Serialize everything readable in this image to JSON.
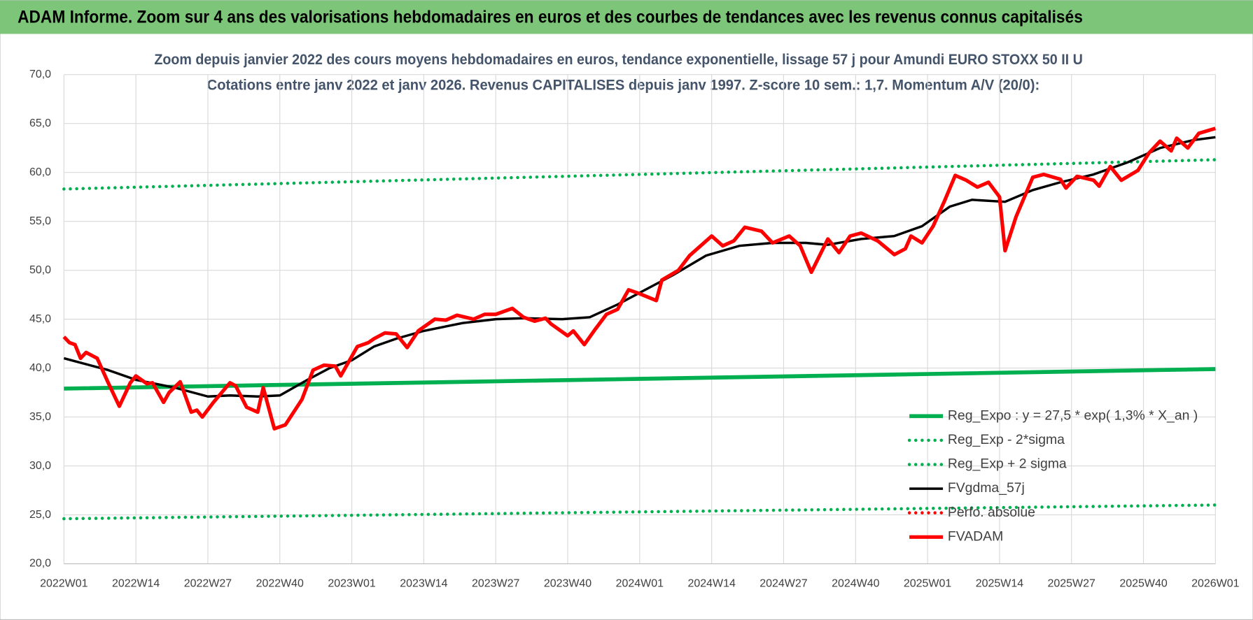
{
  "header": {
    "title": "ADAM Informe. Zoom sur 4 ans des valorisations hebdomadaires en euros et des courbes de tendances avec les revenus connus capitalisés"
  },
  "chart_data": {
    "type": "line",
    "title": "Zoom depuis janvier 2022 des cours moyens hebdomadaires en euros, tendance exponentielle, lissage 57 j pour Amundi EURO STOXX 50 II U",
    "subtitle": "Cotations entre janv 2022 et janv 2026. Revenus CAPITALISES depuis janv 1997. Z-score 10 sem.: 1,7. Momentum A/V (20/0):",
    "xlim": [
      0,
      208
    ],
    "xticks": [
      {
        "value": 0,
        "label": "2022W01"
      },
      {
        "value": 13,
        "label": "2022W14"
      },
      {
        "value": 26,
        "label": "2022W27"
      },
      {
        "value": 39,
        "label": "2022W40"
      },
      {
        "value": 52,
        "label": "2023W01"
      },
      {
        "value": 65,
        "label": "2023W14"
      },
      {
        "value": 78,
        "label": "2023W27"
      },
      {
        "value": 91,
        "label": "2023W40"
      },
      {
        "value": 104,
        "label": "2024W01"
      },
      {
        "value": 117,
        "label": "2024W14"
      },
      {
        "value": 130,
        "label": "2024W27"
      },
      {
        "value": 143,
        "label": "2024W40"
      },
      {
        "value": 156,
        "label": "2025W01"
      },
      {
        "value": 169,
        "label": "2025W14"
      },
      {
        "value": 182,
        "label": "2025W27"
      },
      {
        "value": 195,
        "label": "2025W40"
      },
      {
        "value": 208,
        "label": "2026W01"
      }
    ],
    "ylim": [
      20,
      70
    ],
    "yticks": [
      {
        "value": 20,
        "label": "20,0"
      },
      {
        "value": 25,
        "label": "25,0"
      },
      {
        "value": 30,
        "label": "30,0"
      },
      {
        "value": 35,
        "label": "35,0"
      },
      {
        "value": 40,
        "label": "40,0"
      },
      {
        "value": 45,
        "label": "45,0"
      },
      {
        "value": 50,
        "label": "50,0"
      },
      {
        "value": 55,
        "label": "55,0"
      },
      {
        "value": 60,
        "label": "60,0"
      },
      {
        "value": 65,
        "label": "65,0"
      },
      {
        "value": 70,
        "label": "70,0"
      }
    ],
    "grid": true,
    "legend": "lower right",
    "series": [
      {
        "name": "Reg_Expo : y = 27,5 * exp( 1,3% *  X_an )",
        "color": "#00b050",
        "style": "solid",
        "x": [
          0,
          52,
          104,
          156,
          208
        ],
        "values": [
          37.9,
          38.4,
          38.9,
          39.4,
          39.9
        ]
      },
      {
        "name": "Reg_Exp - 2*sigma",
        "color": "#00b050",
        "style": "dotted",
        "x": [
          0,
          104,
          208
        ],
        "values": [
          24.6,
          25.3,
          26.0
        ]
      },
      {
        "name": "Reg_Exp + 2 sigma",
        "color": "#00b050",
        "style": "dotted",
        "x": [
          0,
          104,
          208
        ],
        "values": [
          58.3,
          59.8,
          61.3
        ]
      },
      {
        "name": "FVgdma_57j",
        "color": "#000000",
        "style": "solid",
        "x": [
          0,
          8,
          13,
          20,
          26,
          30,
          35,
          39,
          44,
          48,
          52,
          56,
          60,
          65,
          72,
          78,
          83,
          90,
          95,
          100,
          105,
          110,
          116,
          122,
          128,
          134,
          138,
          144,
          150,
          155,
          160,
          164,
          170,
          175,
          180,
          186,
          192,
          198,
          204,
          208
        ],
        "values": [
          41.0,
          39.8,
          38.8,
          38.0,
          37.1,
          37.2,
          37.1,
          37.2,
          38.8,
          40.0,
          40.8,
          42.2,
          43.0,
          43.8,
          44.6,
          45.0,
          45.1,
          45.0,
          45.2,
          46.5,
          48.0,
          49.5,
          51.5,
          52.5,
          52.8,
          52.8,
          52.6,
          53.2,
          53.5,
          54.5,
          56.5,
          57.2,
          57.0,
          58.2,
          59.0,
          59.8,
          61.0,
          62.5,
          63.3,
          63.6
        ]
      },
      {
        "name": "Perfo. absolue",
        "color": "#ff0000",
        "style": "dotted",
        "x": [],
        "values": []
      },
      {
        "name": "FVADAM",
        "color": "#ff0000",
        "style": "solid",
        "x": [
          0,
          1,
          2,
          3,
          4,
          6,
          8,
          10,
          12,
          13,
          15,
          16,
          18,
          19,
          21,
          23,
          24,
          25,
          27,
          30,
          31,
          33,
          35,
          36,
          38,
          40,
          43,
          45,
          47,
          49,
          50,
          51,
          53,
          55,
          56,
          58,
          60,
          62,
          64,
          67,
          69,
          71,
          74,
          76,
          78,
          81,
          83,
          85,
          87,
          88,
          91,
          92,
          94,
          96,
          98,
          100,
          102,
          104,
          107,
          108,
          111,
          113,
          117,
          119,
          121,
          123,
          126,
          128,
          131,
          133,
          135,
          138,
          140,
          142,
          144,
          147,
          150,
          152,
          153,
          155,
          157,
          159,
          161,
          163,
          165,
          167,
          169,
          170,
          172,
          175,
          177,
          180,
          181,
          183,
          186,
          187,
          189,
          191,
          194,
          196,
          198,
          200,
          201,
          203,
          205,
          208
        ],
        "values": [
          43.2,
          42.6,
          42.4,
          41.0,
          41.6,
          41.0,
          38.5,
          36.1,
          38.5,
          39.2,
          38.4,
          38.5,
          36.5,
          37.5,
          38.6,
          35.5,
          35.7,
          35.0,
          36.5,
          38.5,
          38.2,
          36.0,
          35.5,
          38.0,
          33.8,
          34.2,
          36.8,
          39.8,
          40.3,
          40.2,
          39.2,
          40.2,
          42.2,
          42.6,
          43.0,
          43.6,
          43.5,
          42.1,
          43.8,
          45.0,
          44.9,
          45.4,
          45.0,
          45.5,
          45.5,
          46.1,
          45.2,
          44.8,
          45.1,
          44.5,
          43.3,
          43.8,
          42.4,
          44.0,
          45.5,
          46.0,
          48.0,
          47.6,
          46.9,
          49.0,
          50.0,
          51.5,
          53.5,
          52.5,
          53.0,
          54.4,
          54.0,
          52.8,
          53.5,
          52.5,
          49.8,
          53.2,
          51.8,
          53.5,
          53.8,
          53.0,
          51.6,
          52.2,
          53.5,
          52.8,
          54.5,
          57.0,
          59.7,
          59.2,
          58.5,
          59.0,
          57.5,
          52.0,
          55.5,
          59.5,
          59.8,
          59.3,
          58.4,
          59.6,
          59.2,
          58.6,
          60.6,
          59.2,
          60.2,
          62.0,
          63.2,
          62.2,
          63.5,
          62.5,
          64.0,
          64.5
        ]
      }
    ]
  }
}
